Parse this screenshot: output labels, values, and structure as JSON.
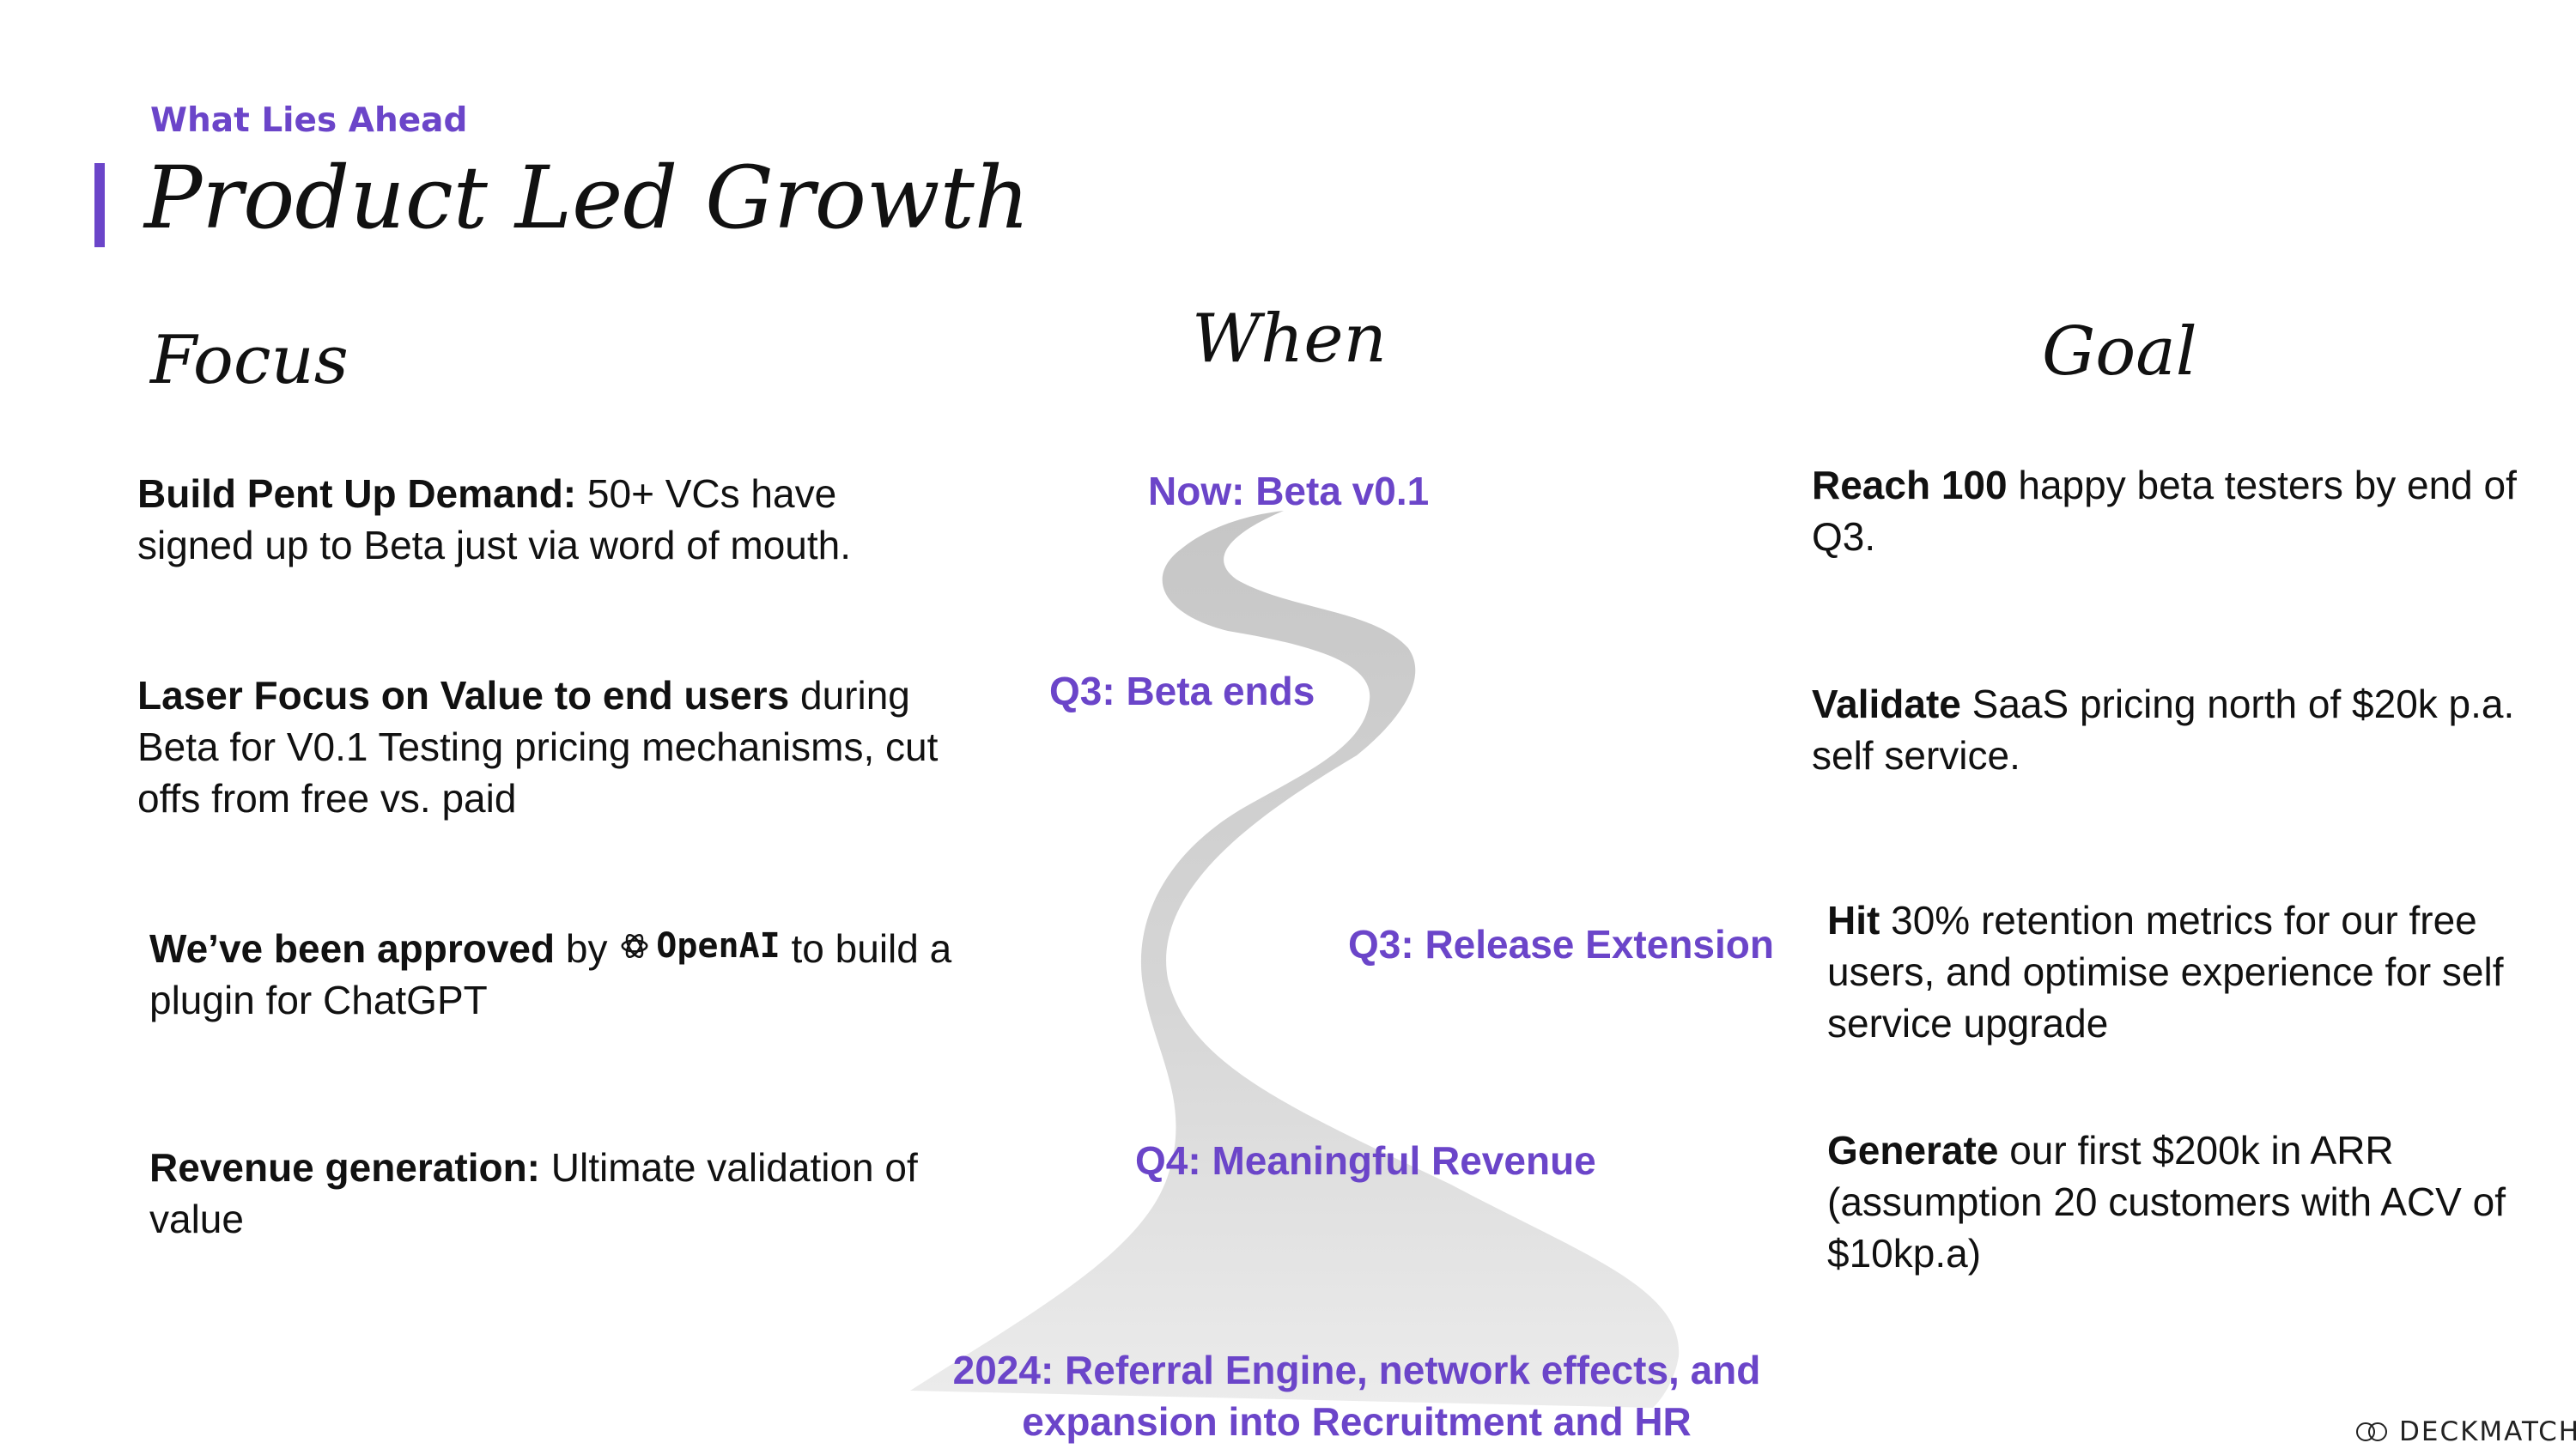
{
  "header": {
    "eyebrow": "What Lies Ahead",
    "title": "Product Led Growth",
    "accent_color": "#6b45c9"
  },
  "columns": {
    "focus": "Focus",
    "when": "When",
    "goal": "Goal"
  },
  "focus_items": [
    {
      "bold": "Build Pent Up Demand:",
      "text": " 50+ VCs have signed up to Beta just via word of mouth."
    },
    {
      "bold": "Laser Focus on Value to end users",
      "text": " during Beta for V0.1 Testing pricing mechanisms, cut offs from free vs. paid"
    },
    {
      "bold": "We’ve been approved",
      "by": " by ",
      "logo_text": "OpenAI",
      "text": " to build a plugin for ChatGPT"
    },
    {
      "bold": "Revenue generation:",
      "text": " Ultimate validation of value"
    }
  ],
  "when_items": [
    "Now: Beta v0.1",
    "Q3: Beta ends",
    "Q3: Release Extension",
    "Q4: Meaningful Revenue",
    "2024: Referral Engine, network effects, and",
    "expansion into Recruitment and HR"
  ],
  "goal_items": [
    {
      "bold": "Reach 100",
      "text": " happy beta testers by end of Q3."
    },
    {
      "bold": "Validate",
      "text": " SaaS pricing north of $20k p.a. self service."
    },
    {
      "bold": "Hit",
      "text": " 30% retention metrics for our free users, and optimise experience for self service upgrade"
    },
    {
      "bold": "Generate",
      "text": " our first $200k in ARR (assumption 20 customers with ACV of $10kp.a)"
    }
  ],
  "footer": {
    "brand": "DECKMATCH"
  },
  "icons": {
    "openai": "openai-logo-icon",
    "brand": "deckmatch-logo-icon"
  },
  "colors": {
    "accent": "#6b45c9",
    "road": "#d0d0d0"
  }
}
